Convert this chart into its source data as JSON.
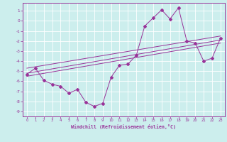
{
  "title": "",
  "xlabel": "Windchill (Refroidissement éolien,°C)",
  "ylabel": "",
  "bg_color": "#cceeed",
  "grid_color": "#ffffff",
  "line_color": "#993399",
  "xlim": [
    -0.5,
    23.5
  ],
  "ylim": [
    -9.5,
    1.8
  ],
  "xticks": [
    0,
    1,
    2,
    3,
    4,
    5,
    6,
    7,
    8,
    9,
    10,
    11,
    12,
    13,
    14,
    15,
    16,
    17,
    18,
    19,
    20,
    21,
    22,
    23
  ],
  "yticks": [
    1,
    0,
    -1,
    -2,
    -3,
    -4,
    -5,
    -6,
    -7,
    -8,
    -9
  ],
  "main_x": [
    0,
    1,
    2,
    3,
    4,
    5,
    6,
    7,
    8,
    9,
    10,
    11,
    12,
    13,
    14,
    15,
    16,
    17,
    18,
    19,
    20,
    21,
    22,
    23
  ],
  "main_y": [
    -5.3,
    -4.7,
    -5.9,
    -6.3,
    -6.5,
    -7.2,
    -6.8,
    -8.1,
    -8.5,
    -8.2,
    -5.6,
    -4.4,
    -4.3,
    -3.4,
    -0.5,
    0.3,
    1.1,
    0.2,
    1.3,
    -2.0,
    -2.2,
    -4.0,
    -3.7,
    -1.7
  ],
  "trend1_x": [
    0,
    23
  ],
  "trend1_y": [
    -5.5,
    -2.2
  ],
  "trend2_x": [
    0,
    23
  ],
  "trend2_y": [
    -5.2,
    -1.9
  ],
  "trend3_x": [
    0,
    23
  ],
  "trend3_y": [
    -4.7,
    -1.5
  ]
}
